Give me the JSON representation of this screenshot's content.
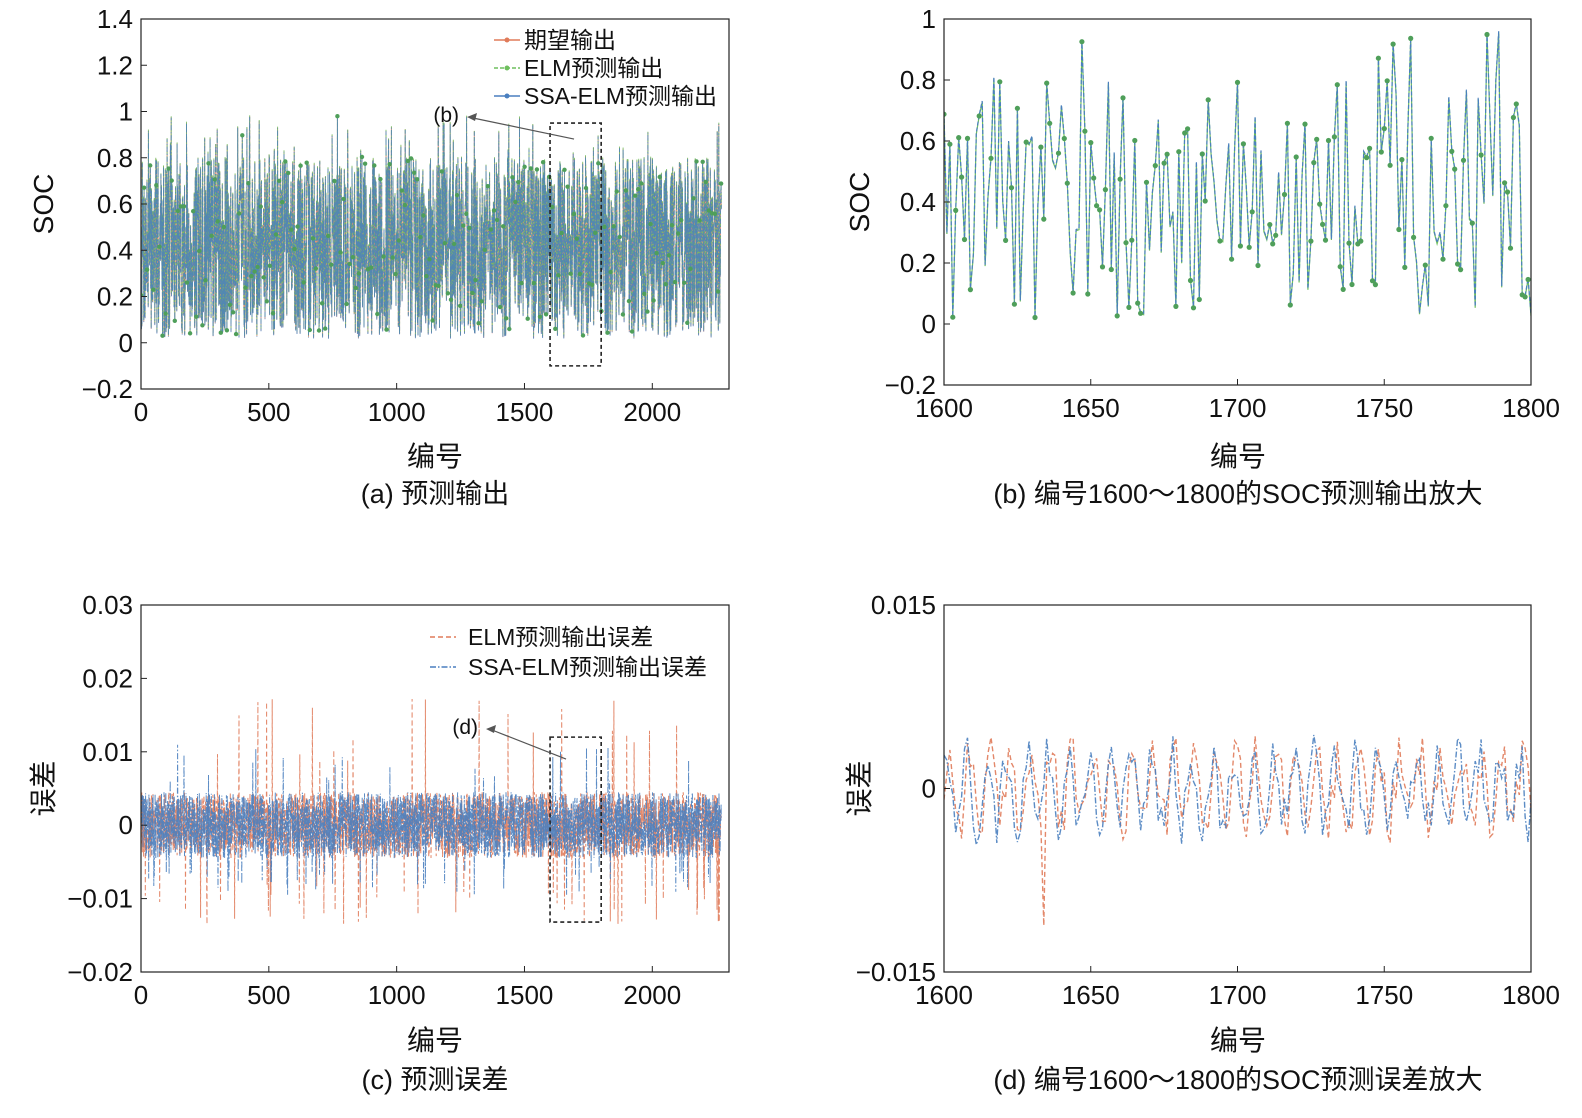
{
  "chart_data": [
    {
      "id": "a",
      "type": "line",
      "caption": "(a) 预测输出",
      "xlabel": "编号",
      "ylabel": "SOC",
      "xlim": [
        0,
        2300
      ],
      "ylim": [
        -0.2,
        1.4
      ],
      "xticks": [
        "0",
        "500",
        "1000",
        "1500",
        "2000"
      ],
      "yticks": [
        "−0.2",
        "0",
        "0.2",
        "0.4",
        "0.6",
        "0.8",
        "1",
        "1.2",
        "1.4"
      ],
      "legend": [
        "期望输出",
        "ELM预测输出",
        "SSA-ELM预测输出"
      ],
      "legend_position": "top-right",
      "zoom_box": {
        "x": [
          1600,
          1800
        ],
        "y": [
          -0.1,
          0.95
        ],
        "label": "(b)"
      },
      "series": [
        {
          "name": "期望输出",
          "color": "#e07b5a",
          "description": "random SOC values between 0 and 0.8, occasional peaks up to 1.0",
          "n": 2270
        },
        {
          "name": "ELM预测输出",
          "color": "#6fbf5e",
          "n": 2270
        },
        {
          "name": "SSA-ELM预测输出",
          "color": "#4a7fbf",
          "n": 2270
        }
      ]
    },
    {
      "id": "b",
      "type": "line",
      "caption": "(b) 编号1600～1800的SOC预测输出放大",
      "xlabel": "编号",
      "ylabel": "SOC",
      "xlim": [
        1600,
        1800
      ],
      "ylim": [
        -0.2,
        1
      ],
      "xticks": [
        "1600",
        "1650",
        "1700",
        "1750",
        "1800"
      ],
      "yticks": [
        "−0.2",
        "0",
        "0.2",
        "0.4",
        "0.6",
        "0.8",
        "1"
      ],
      "series": [
        {
          "name": "ELM预测输出",
          "color": "#6fbf5e",
          "n": 201
        },
        {
          "name": "SSA-ELM预测输出",
          "color": "#4a7fbf",
          "n": 201
        }
      ]
    },
    {
      "id": "c",
      "type": "line",
      "caption": "(c) 预测误差",
      "xlabel": "编号",
      "ylabel": "误差",
      "xlim": [
        0,
        2300
      ],
      "ylim": [
        -0.02,
        0.03
      ],
      "xticks": [
        "0",
        "500",
        "1000",
        "1500",
        "2000"
      ],
      "yticks": [
        "−0.02",
        "−0.01",
        "0",
        "0.01",
        "0.02",
        "0.03"
      ],
      "legend": [
        "ELM预测输出误差",
        "SSA-ELM预测输出误差"
      ],
      "legend_position": "top-right",
      "zoom_box": {
        "x": [
          1600,
          1800
        ],
        "y": [
          -0.0132,
          0.012
        ],
        "label": "(d)"
      },
      "series": [
        {
          "name": "ELM预测输出误差",
          "color": "#e07b5a",
          "style": "dashed",
          "n": 2270,
          "min": -0.0135,
          "max": 0.0172
        },
        {
          "name": "SSA-ELM预测输出误差",
          "color": "#4a7fbf",
          "style": "dashdot",
          "n": 2270,
          "min": -0.0095,
          "max": 0.011
        }
      ]
    },
    {
      "id": "d",
      "type": "line",
      "caption": "(d) 编号1600～1800的SOC预测误差放大",
      "xlabel": "编号",
      "ylabel": "误差",
      "xlim": [
        1600,
        1800
      ],
      "ylim": [
        -0.015,
        0.015
      ],
      "xticks": [
        "1600",
        "1650",
        "1700",
        "1750",
        "1800"
      ],
      "yticks": [
        "−0.015",
        "0",
        "0.015"
      ],
      "series": [
        {
          "name": "ELM预测输出误差",
          "color": "#e07b5a",
          "style": "dashed",
          "n": 201,
          "min": -0.0112,
          "max": 0.0055
        },
        {
          "name": "SSA-ELM预测输出误差",
          "color": "#4a7fbf",
          "style": "dashdot",
          "n": 201,
          "min": -0.004,
          "max": 0.005
        }
      ]
    }
  ]
}
